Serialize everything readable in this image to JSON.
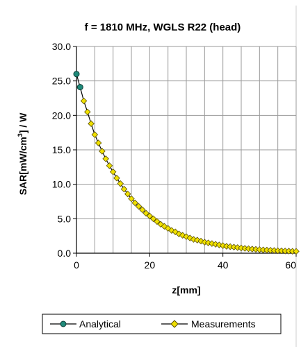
{
  "chart_data": {
    "type": "scatter",
    "title": "f = 1810 MHz, WGLS R22 (head)",
    "xlabel": "z[mm]",
    "ylabel": {
      "pre": "SAR[mW/cm",
      "sup": "3",
      "post": "] / W"
    },
    "xlim": [
      0,
      60
    ],
    "ylim": [
      0,
      30
    ],
    "x_ticks": [
      0,
      20,
      40,
      60
    ],
    "x_tick_labels": [
      "0",
      "20",
      "40",
      "60"
    ],
    "y_ticks": [
      0,
      5,
      10,
      15,
      20,
      25,
      30
    ],
    "y_tick_labels": [
      "0.0",
      "5.0",
      "10.0",
      "15.0",
      "20.0",
      "25.0",
      "30.0"
    ],
    "grid": true,
    "legend_position": "bottom",
    "series": [
      {
        "name": "Analytical",
        "color": "#1f8a7a",
        "marker": "circle",
        "x": [
          0,
          1
        ],
        "y": [
          26.0,
          24.1
        ]
      },
      {
        "name": "Measurements",
        "color": "#f0e000",
        "marker": "diamond",
        "x": [
          1,
          2,
          3,
          4,
          5,
          6,
          7,
          8,
          9,
          10,
          11,
          12,
          13,
          14,
          15,
          16,
          17,
          18,
          19,
          20,
          21,
          22,
          23,
          24,
          25,
          26,
          27,
          28,
          29,
          30,
          31,
          32,
          33,
          34,
          35,
          36,
          37,
          38,
          39,
          40,
          41,
          42,
          43,
          44,
          45,
          46,
          47,
          48,
          49,
          50,
          51,
          52,
          53,
          54,
          55,
          56,
          57,
          58,
          59,
          60
        ],
        "y": [
          24.1,
          22.1,
          20.5,
          18.8,
          17.2,
          16.0,
          14.8,
          13.7,
          12.7,
          11.8,
          10.9,
          10.1,
          9.3,
          8.6,
          7.9,
          7.3,
          6.8,
          6.3,
          5.8,
          5.4,
          5.0,
          4.6,
          4.2,
          3.9,
          3.6,
          3.3,
          3.1,
          2.8,
          2.6,
          2.4,
          2.2,
          2.0,
          1.9,
          1.75,
          1.6,
          1.5,
          1.4,
          1.3,
          1.2,
          1.1,
          1.0,
          0.95,
          0.88,
          0.82,
          0.76,
          0.7,
          0.65,
          0.6,
          0.56,
          0.52,
          0.48,
          0.45,
          0.42,
          0.39,
          0.36,
          0.34,
          0.32,
          0.3,
          0.28,
          0.27
        ]
      }
    ]
  }
}
